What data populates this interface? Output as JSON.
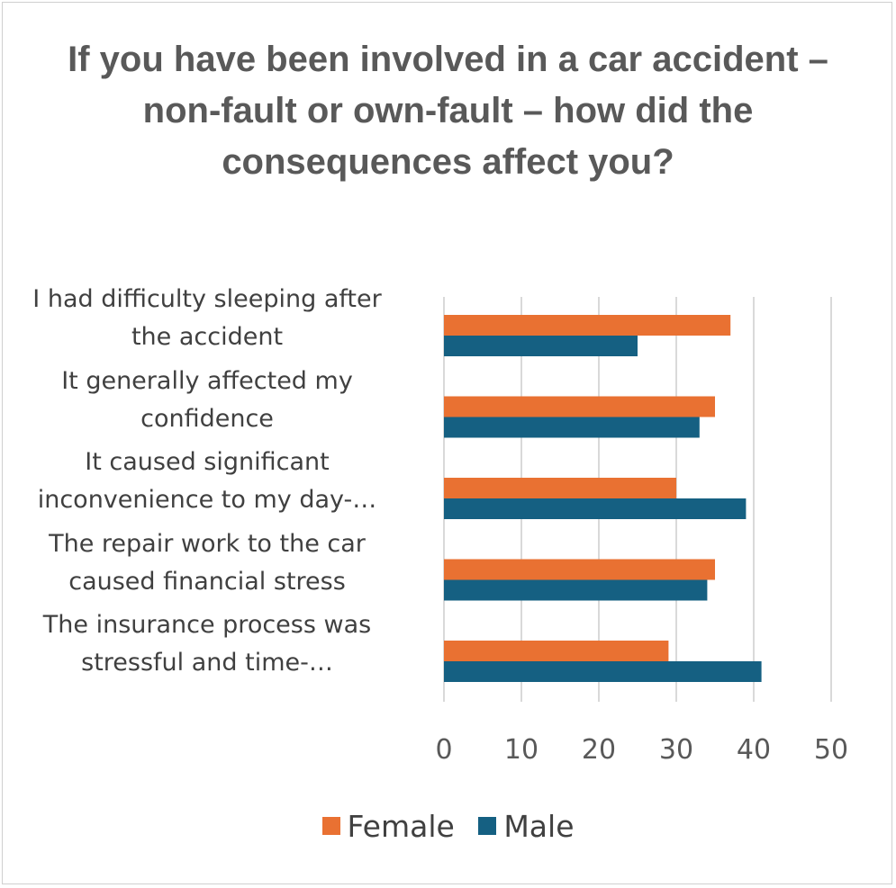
{
  "chart_data": {
    "type": "bar",
    "orientation": "horizontal",
    "title": "If you have been involved in a car accident – non-fault or own-fault – how did the consequences affect you?",
    "categories": [
      [
        "I had difficulty sleeping after",
        "the accident"
      ],
      [
        "It generally affected my",
        "confidence"
      ],
      [
        "It caused significant",
        "inconvenience to my day-…"
      ],
      [
        "The repair work to the car",
        "caused financial stress"
      ],
      [
        "The insurance process was",
        "stressful and time-…"
      ]
    ],
    "series": [
      {
        "name": "Female",
        "color": "#E97132",
        "values": [
          37,
          35,
          30,
          35,
          29
        ]
      },
      {
        "name": "Male",
        "color": "#156082",
        "values": [
          25,
          33,
          39,
          34,
          41
        ]
      }
    ],
    "xlim": [
      0,
      50
    ],
    "xticks": [
      "0",
      "10",
      "20",
      "30",
      "40",
      "50"
    ],
    "grid": true,
    "legend_position": "bottom",
    "xlabel": "",
    "ylabel": ""
  }
}
